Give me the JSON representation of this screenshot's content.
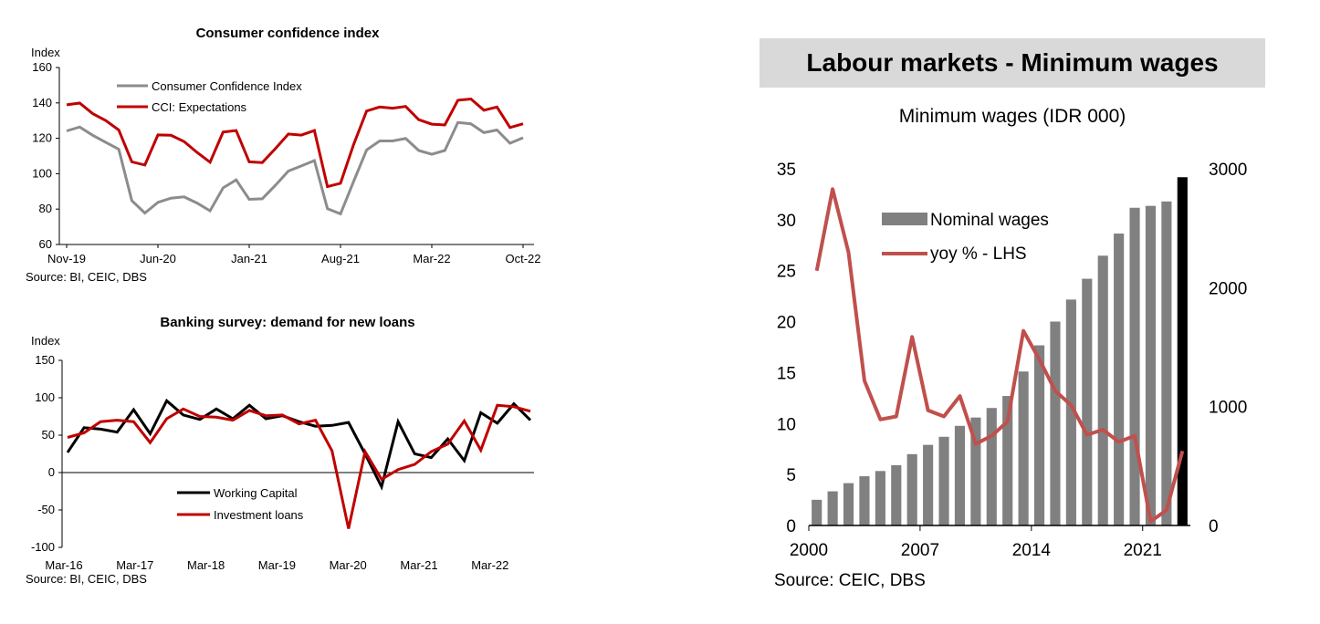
{
  "panel_header": "Labour markets - Minimum wages",
  "chart_data": [
    {
      "id": "cci",
      "type": "line",
      "title": "Consumer confidence index",
      "ylabel": "Index",
      "source": "Source: BI, CEIC, DBS",
      "ylim": [
        60,
        160
      ],
      "yticks": [
        60,
        80,
        100,
        120,
        140,
        160
      ],
      "x_tick_labels": [
        "Nov-19",
        "Jun-20",
        "Jan-21",
        "Aug-21",
        "Mar-22",
        "Oct-22"
      ],
      "legend_position": "top-left",
      "series": [
        {
          "name": "Consumer Confidence Index",
          "color": "#8c8c8c",
          "values": [
            124.2,
            126.4,
            121.7,
            117.7,
            113.8,
            84.8,
            77.8,
            83.8,
            86.2,
            86.9,
            83.4,
            79.0,
            92.0,
            96.5,
            85.5,
            85.8,
            93.4,
            101.5,
            104.4,
            107.4,
            80.2,
            77.3,
            95.5,
            113.4,
            118.5,
            118.5,
            119.9,
            113.1,
            111.0,
            113.1,
            128.9,
            128.2,
            123.2,
            124.7,
            117.2,
            120.3
          ],
          "label_months_start": "Nov-19"
        },
        {
          "name": "CCI: Expectations",
          "color": "#c00000",
          "values": [
            138.9,
            139.9,
            133.9,
            130.0,
            124.7,
            106.7,
            104.9,
            121.9,
            121.7,
            118.2,
            112.0,
            106.5,
            123.5,
            124.4,
            106.7,
            106.3,
            114.1,
            122.4,
            121.8,
            124.4,
            92.7,
            94.6,
            116.4,
            135.4,
            137.7,
            137.0,
            138.0,
            130.5,
            128.0,
            127.5,
            141.5,
            142.2,
            135.9,
            137.7,
            126.1,
            128.2
          ]
        }
      ]
    },
    {
      "id": "loans",
      "type": "line",
      "title": "Banking survey: demand for new loans",
      "ylabel": "Index",
      "source": "Source: BI, CEIC, DBS",
      "ylim": [
        -100,
        150
      ],
      "yticks": [
        -100,
        -50,
        0,
        50,
        100,
        150
      ],
      "x_tick_labels": [
        "Mar-16",
        "Mar-17",
        "Mar-18",
        "Mar-19",
        "Mar-20",
        "Mar-21",
        "Mar-22"
      ],
      "legend_position": "bottom-center",
      "series": [
        {
          "name": "Working Capital",
          "color": "#000000",
          "values": [
            27,
            60,
            58,
            54,
            84,
            52,
            96,
            77,
            71,
            85,
            72,
            90,
            72,
            76,
            68,
            62,
            63,
            67,
            25,
            -19,
            68,
            25,
            20,
            45,
            16,
            80,
            66,
            92,
            70
          ]
        },
        {
          "name": "Investment loans",
          "color": "#c00000",
          "values": [
            47,
            53,
            68,
            70,
            68,
            40,
            72,
            85,
            75,
            74,
            70,
            83,
            76,
            77,
            65,
            70,
            29,
            -75,
            28,
            -9,
            4,
            11,
            28,
            38,
            69,
            30,
            90,
            88,
            82
          ]
        }
      ]
    },
    {
      "id": "wages",
      "type": "bar+line",
      "title": "Minimum wages (IDR 000)",
      "source": "Source: CEIC, DBS",
      "x_tick_labels": [
        "2000",
        "2007",
        "2014",
        "2021"
      ],
      "years": [
        2000,
        2001,
        2002,
        2003,
        2004,
        2005,
        2006,
        2007,
        2008,
        2009,
        2010,
        2011,
        2012,
        2013,
        2014,
        2015,
        2016,
        2017,
        2018,
        2019,
        2020,
        2021,
        2022,
        2023
      ],
      "left_axis": {
        "ylim": [
          0,
          35
        ],
        "yticks": [
          0,
          5,
          10,
          15,
          20,
          25,
          30,
          35
        ]
      },
      "right_axis": {
        "ylim": [
          0,
          3000
        ],
        "yticks": [
          0,
          1000,
          2000,
          3000
        ]
      },
      "legend_position": "top-left",
      "series": [
        {
          "name": "Nominal wages",
          "kind": "bar",
          "axis": "right",
          "color": "#808080",
          "highlight_last_color": "#000000",
          "values": [
            216,
            287,
            356,
            414,
            458,
            507,
            600,
            678,
            746,
            838,
            908,
            988,
            1089,
            1295,
            1515,
            1715,
            1900,
            2075,
            2269,
            2455,
            2672,
            2688,
            2725,
            2929
          ]
        },
        {
          "name": "yoy % - LHS",
          "kind": "line",
          "axis": "left",
          "color": "#c0504d",
          "values": [
            25.0,
            33.0,
            26.8,
            14.2,
            10.4,
            10.7,
            18.5,
            11.3,
            10.7,
            12.7,
            8.0,
            8.8,
            10.2,
            19.1,
            16.3,
            13.2,
            11.8,
            8.9,
            9.4,
            8.2,
            8.8,
            0.4,
            1.5,
            7.3
          ]
        }
      ]
    }
  ]
}
